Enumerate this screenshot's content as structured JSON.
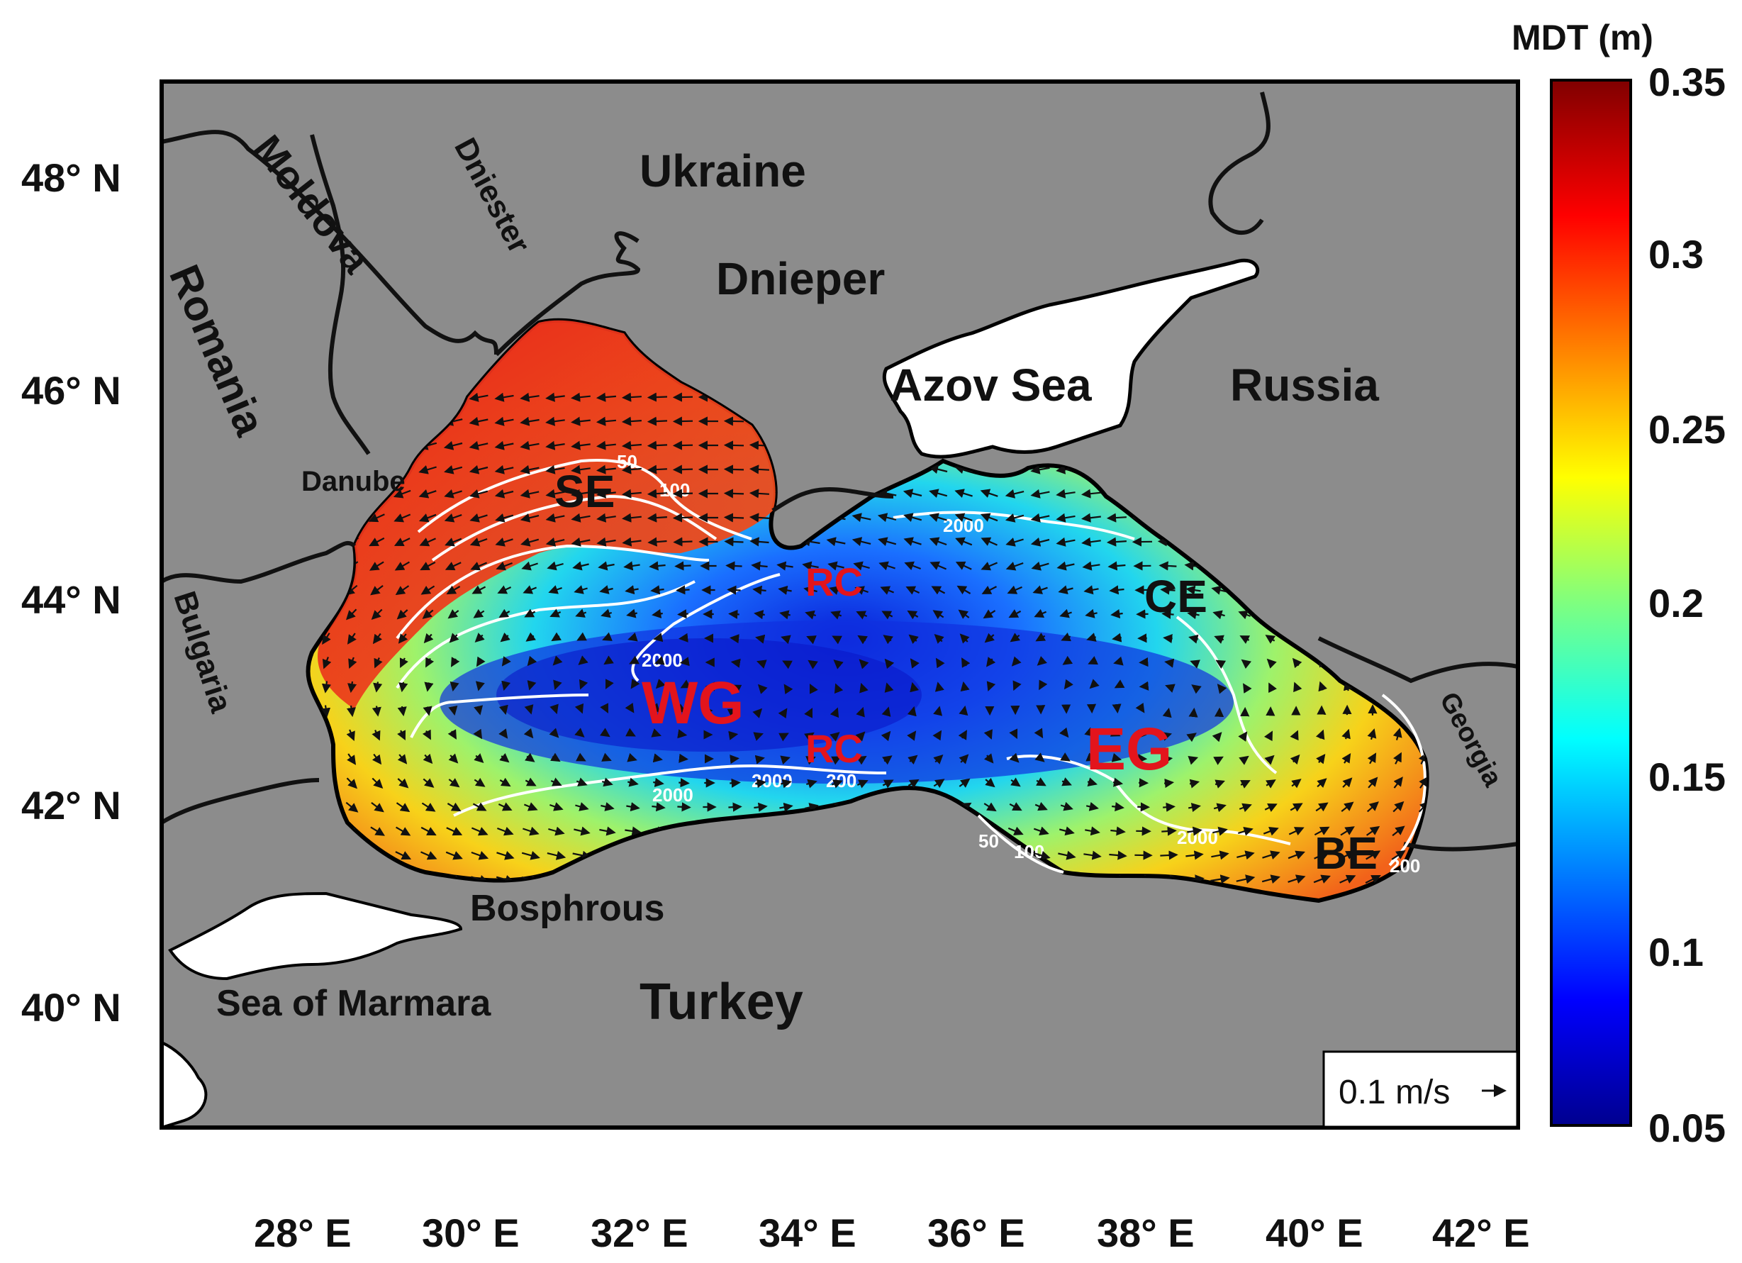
{
  "colorbar": {
    "title": "MDT (m)",
    "ticks": [
      "0.35",
      "0.3",
      "0.25",
      "0.2",
      "0.15",
      "0.1",
      "0.05"
    ],
    "min": 0.05,
    "max": 0.35,
    "colormap": "jet"
  },
  "axes": {
    "lat_ticks": [
      "48° N",
      "46° N",
      "44° N",
      "42° N",
      "40° N"
    ],
    "lon_ticks": [
      "28° E",
      "30° E",
      "32° E",
      "34° E",
      "36° E",
      "38° E",
      "40° E",
      "42° E"
    ],
    "lon_range": [
      27,
      43
    ],
    "lat_range": [
      39,
      49
    ]
  },
  "labels": {
    "moldova": "Moldova",
    "dniester": "Dniester",
    "ukraine": "Ukraine",
    "dnieper": "Dnieper",
    "romania": "Romania",
    "azov_sea": "Azov Sea",
    "russia": "Russia",
    "danube": "Danube",
    "bulgaria": "Bulgaria",
    "georgia": "Georgia",
    "bosphrous": "Bosphrous",
    "sea_of_marmara": "Sea of Marmara",
    "turkey": "Turkey"
  },
  "features": {
    "se": "SE",
    "ce": "CE",
    "be": "BE",
    "wg": "WG",
    "eg": "EG",
    "rc_north": "RC",
    "rc_south": "RC"
  },
  "contours": [
    "50",
    "100",
    "200",
    "2000",
    "2000",
    "2000",
    "2000",
    "2000",
    "200",
    "50",
    "100",
    "200"
  ],
  "scale_arrow": {
    "label": "0.1 m/s"
  },
  "colors": {
    "land": "#8c8c8c",
    "white_areas": "#ffffff",
    "feature_red": "#e3141c"
  }
}
